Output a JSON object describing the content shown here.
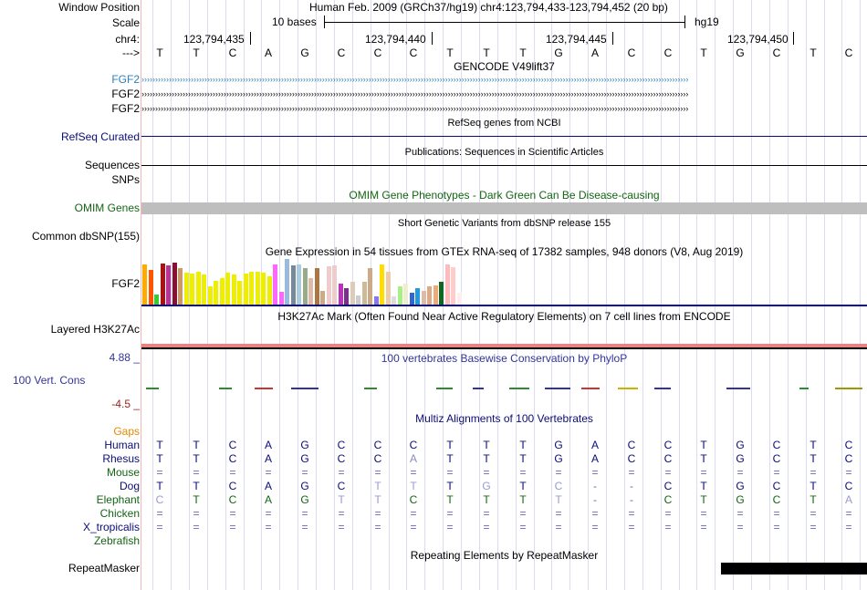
{
  "header": {
    "window_position_label": "Window Position",
    "scale_label": "Scale",
    "chrom_label": "chr4:",
    "strand_label": "--->",
    "assembly_text": "Human Feb. 2009 (GRCh37/hg19)   chr4:123,794,433-123,794,452 (20 bp)",
    "scale_text": "10 bases",
    "db_text": "hg19",
    "positions": [
      "123,794,435",
      "123,794,440",
      "123,794,445",
      "123,794,450"
    ],
    "bases": [
      "T",
      "T",
      "C",
      "A",
      "G",
      "C",
      "C",
      "C",
      "T",
      "T",
      "T",
      "G",
      "A",
      "C",
      "C",
      "T",
      "G",
      "C",
      "T",
      "C"
    ]
  },
  "tracks": {
    "gencode": {
      "title": "GENCODE V49lift37",
      "genes": [
        "FGF2",
        "FGF2",
        "FGF2"
      ],
      "colors": [
        "#2d7fb8",
        "#000000",
        "#000000"
      ]
    },
    "refseq": {
      "title": "RefSeq genes from NCBI",
      "label": "RefSeq Curated",
      "color": "#0c0c78"
    },
    "publications": {
      "title": "Publications: Sequences in Scientific Articles",
      "label": "Sequences"
    },
    "snps": {
      "label": "SNPs"
    },
    "omim": {
      "title": "OMIM Gene Phenotypes - Dark Green Can Be Disease-causing",
      "label": "OMIM Genes",
      "color": "#146414"
    },
    "dbsnp": {
      "title": "Short Genetic Variants from dbSNP release 155",
      "label": "Common dbSNP(155)"
    },
    "gtex": {
      "title": "Gene Expression in 54 tissues from GTEx RNA-seq of 17382 samples, 948 donors (V8, Aug 2019)",
      "label": "FGF2",
      "bars": [
        {
          "v": 0.88,
          "c": "#ffaa00"
        },
        {
          "v": 0.75,
          "c": "#ff5500"
        },
        {
          "v": 0.22,
          "c": "#33cc33"
        },
        {
          "v": 0.9,
          "c": "#aa1111"
        },
        {
          "v": 0.85,
          "c": "#bb3399"
        },
        {
          "v": 0.92,
          "c": "#881133"
        },
        {
          "v": 0.8,
          "c": "#cc9966"
        },
        {
          "v": 0.7,
          "c": "#eeee00"
        },
        {
          "v": 0.68,
          "c": "#eeee00"
        },
        {
          "v": 0.72,
          "c": "#eeee00"
        },
        {
          "v": 0.65,
          "c": "#eeee00"
        },
        {
          "v": 0.4,
          "c": "#eeee00"
        },
        {
          "v": 0.52,
          "c": "#eeee00"
        },
        {
          "v": 0.58,
          "c": "#eeee00"
        },
        {
          "v": 0.7,
          "c": "#eeee00"
        },
        {
          "v": 0.66,
          "c": "#eeee00"
        },
        {
          "v": 0.52,
          "c": "#eeee00"
        },
        {
          "v": 0.68,
          "c": "#eeee00"
        },
        {
          "v": 0.72,
          "c": "#eeee00"
        },
        {
          "v": 0.72,
          "c": "#eeee00"
        },
        {
          "v": 0.7,
          "c": "#eeee00"
        },
        {
          "v": 0.62,
          "c": "#eeee00"
        },
        {
          "v": 0.88,
          "c": "#ff66ff"
        },
        {
          "v": 0.28,
          "c": "#ff66ff"
        },
        {
          "v": 1.0,
          "c": "#99bbdd"
        },
        {
          "v": 0.85,
          "c": "#778899"
        },
        {
          "v": 0.88,
          "c": "#aaccdd"
        },
        {
          "v": 0.8,
          "c": "#99aa88"
        },
        {
          "v": 0.58,
          "c": "#ddbbaa"
        },
        {
          "v": 0.8,
          "c": "#aa7744"
        },
        {
          "v": 0.3,
          "c": "#ccaa88"
        },
        {
          "v": 0.84,
          "c": "#eecccc"
        },
        {
          "v": 0.86,
          "c": "#eecccc"
        },
        {
          "v": 0.45,
          "c": "#bb33bb"
        },
        {
          "v": 0.35,
          "c": "#773388"
        },
        {
          "v": 0.5,
          "c": "#ddccbb"
        },
        {
          "v": 0.2,
          "c": "#cccccc"
        },
        {
          "v": 0.5,
          "c": "#ccbb99"
        },
        {
          "v": 0.8,
          "c": "#ccaa88"
        },
        {
          "v": 0.18,
          "c": "#8877ee"
        },
        {
          "v": 0.88,
          "c": "#ffdd00"
        },
        {
          "v": 0.72,
          "c": "#eeccaa"
        },
        {
          "v": 0.18,
          "c": "#dddddd"
        },
        {
          "v": 0.4,
          "c": "#aaee88"
        },
        {
          "v": 0.45,
          "c": "#eeeecc"
        },
        {
          "v": 0.25,
          "c": "#3366cc"
        },
        {
          "v": 0.36,
          "c": "#2299dd"
        },
        {
          "v": 0.3,
          "c": "#ddbbaa"
        },
        {
          "v": 0.4,
          "c": "#ddaa88"
        },
        {
          "v": 0.42,
          "c": "#eeaa77"
        },
        {
          "v": 0.5,
          "c": "#116622"
        },
        {
          "v": 0.88,
          "c": "#ffbbbb"
        },
        {
          "v": 0.82,
          "c": "#ffcccc"
        },
        {
          "v": 0.25,
          "c": "#ffeeee"
        }
      ]
    },
    "h3k27ac": {
      "title": "H3K27Ac Mark (Often Found Near Active Regulatory Elements) on 7 cell lines from ENCODE",
      "label": "Layered H3K27Ac"
    },
    "phylop": {
      "title": "100 vertebrates Basewise Conservation by PhyloP",
      "label": "100 Vert. Cons",
      "max": "4.88 _",
      "min": "-4.5 _",
      "color": "#333399",
      "min_color": "#992222"
    },
    "multiz": {
      "title": "Multiz Alignments of 100 Vertebrates",
      "gaps_label": "Gaps",
      "species": [
        {
          "name": "Human",
          "color": "#0c0c78",
          "seq": [
            "T",
            "T",
            "C",
            "A",
            "G",
            "C",
            "C",
            "C",
            "T",
            "T",
            "T",
            "G",
            "A",
            "C",
            "C",
            "T",
            "G",
            "C",
            "T",
            "C"
          ]
        },
        {
          "name": "Rhesus",
          "color": "#0c0c78",
          "seq": [
            "T",
            "T",
            "C",
            "A",
            "G",
            "C",
            "C",
            "A",
            "T",
            "T",
            "T",
            "G",
            "A",
            "C",
            "C",
            "T",
            "G",
            "C",
            "T",
            "C"
          ]
        },
        {
          "name": "Mouse",
          "color": "#146414",
          "seq": [
            "=",
            "=",
            "=",
            "=",
            "=",
            "=",
            "=",
            "=",
            "=",
            "=",
            "=",
            "=",
            "=",
            "=",
            "=",
            "=",
            "=",
            "=",
            "=",
            "="
          ]
        },
        {
          "name": "Dog",
          "color": "#0c0c78",
          "seq": [
            "T",
            "T",
            "C",
            "A",
            "G",
            "C",
            "T",
            "T",
            "T",
            "G",
            "T",
            "C",
            "-",
            "-",
            "C",
            "T",
            "G",
            "C",
            "T",
            "C"
          ]
        },
        {
          "name": "Elephant",
          "color": "#146414",
          "seq": [
            "C",
            "T",
            "C",
            "A",
            "G",
            "T",
            "T",
            "C",
            "T",
            "T",
            "T",
            "T",
            "-",
            "-",
            "C",
            "T",
            "G",
            "C",
            "T",
            "A"
          ]
        },
        {
          "name": "Chicken",
          "color": "#146414",
          "seq": [
            "=",
            "=",
            "=",
            "=",
            "=",
            "=",
            "=",
            "=",
            "=",
            "=",
            "=",
            "=",
            "=",
            "=",
            "=",
            "=",
            "=",
            "=",
            "=",
            "="
          ]
        },
        {
          "name": "X_tropicalis",
          "color": "#0c0c78",
          "seq": [
            "=",
            "=",
            "=",
            "=",
            "=",
            "=",
            "=",
            "=",
            "=",
            "=",
            "=",
            "=",
            "=",
            "=",
            "=",
            "=",
            "=",
            "=",
            "=",
            "="
          ]
        },
        {
          "name": "Zebrafish",
          "color": "#146414",
          "seq": []
        }
      ]
    },
    "repeatmasker": {
      "title": "Repeating Elements by RepeatMasker",
      "label": "RepeatMasker"
    }
  }
}
